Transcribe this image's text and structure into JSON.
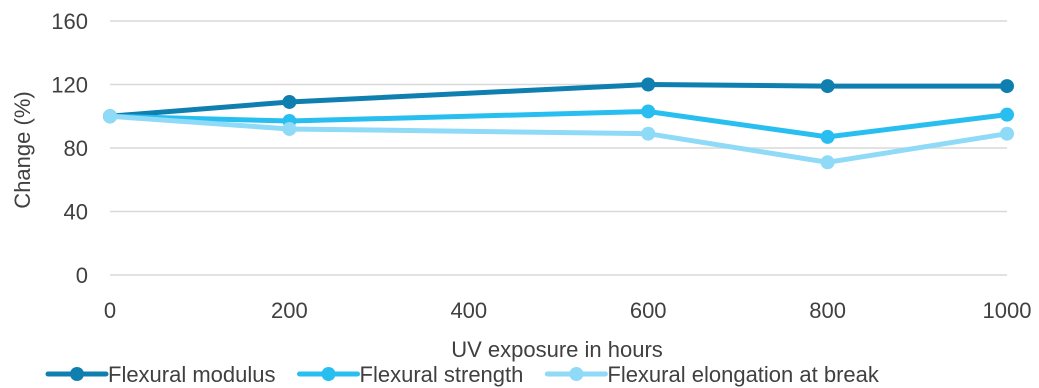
{
  "chart_data": {
    "type": "line",
    "title": "",
    "xlabel": "UV exposure in hours",
    "ylabel": "Change (%)",
    "x": [
      0,
      200,
      600,
      800,
      1000
    ],
    "x_ticks": [
      "0",
      "200",
      "400",
      "600",
      "800",
      "1000"
    ],
    "y_ticks": [
      "0",
      "40",
      "80",
      "120",
      "160"
    ],
    "xlim": [
      0,
      1000
    ],
    "ylim": [
      0,
      160
    ],
    "grid": "horizontal",
    "legend_position": "bottom",
    "series": [
      {
        "name": "Flexural modulus",
        "color": "#0f7fb0",
        "values": [
          100,
          109,
          120,
          119,
          119
        ]
      },
      {
        "name": "Flexural strength",
        "color": "#28bff0",
        "values": [
          100,
          97,
          103,
          87,
          101
        ]
      },
      {
        "name": "Flexural elongation at break",
        "color": "#8edaf7",
        "values": [
          100,
          92,
          89,
          71,
          89
        ]
      }
    ]
  }
}
